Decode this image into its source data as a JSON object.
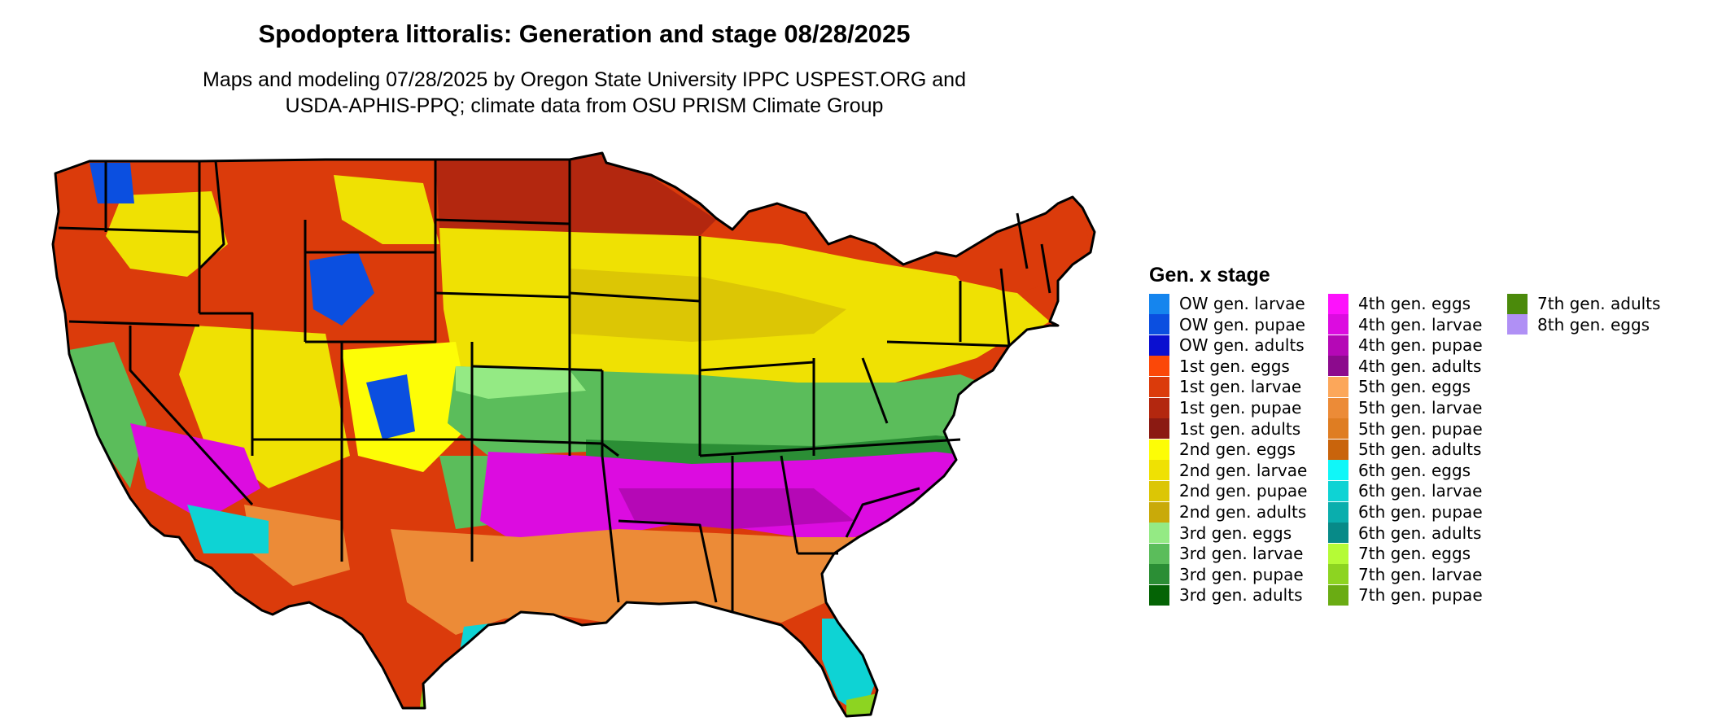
{
  "title": "Spodoptera littoralis: Generation and stage 08/28/2025",
  "subtitle_line1": "Maps and modeling 07/28/2025 by Oregon State University IPPC USPEST.ORG and",
  "subtitle_line2": "USDA-APHIS-PPQ; climate data from OSU PRISM Climate Group",
  "legend": {
    "title": "Gen. x stage",
    "items": [
      {
        "label": "OW gen. larvae",
        "color": "#1585ee"
      },
      {
        "label": "OW gen. pupae",
        "color": "#0b4fe0"
      },
      {
        "label": "OW gen. adults",
        "color": "#0a0fd0"
      },
      {
        "label": "1st gen. eggs",
        "color": "#fb4808"
      },
      {
        "label": "1st gen. larvae",
        "color": "#db3b0b"
      },
      {
        "label": "1st gen. pupae",
        "color": "#b3270f"
      },
      {
        "label": "1st gen. adults",
        "color": "#8b1a12"
      },
      {
        "label": "2nd gen. eggs",
        "color": "#fdfd06"
      },
      {
        "label": "2nd gen. larvae",
        "color": "#efe103"
      },
      {
        "label": "2nd gen. pupae",
        "color": "#dcc605"
      },
      {
        "label": "2nd gen. adults",
        "color": "#c9aa09"
      },
      {
        "label": "3rd gen. eggs",
        "color": "#94ea84"
      },
      {
        "label": "3rd gen. larvae",
        "color": "#5bbd5b"
      },
      {
        "label": "3rd gen. pupae",
        "color": "#2b8e35"
      },
      {
        "label": "3rd gen. adults",
        "color": "#046305"
      },
      {
        "label": "4th gen. eggs",
        "color": "#fd12fc"
      },
      {
        "label": "4th gen. larvae",
        "color": "#dc0ce0"
      },
      {
        "label": "4th gen. pupae",
        "color": "#b508b6"
      },
      {
        "label": "4th gen. adults",
        "color": "#8c0a8d"
      },
      {
        "label": "5th gen. eggs",
        "color": "#fca75a"
      },
      {
        "label": "5th gen. larvae",
        "color": "#ec8b37"
      },
      {
        "label": "5th gen. pupae",
        "color": "#df7d22"
      },
      {
        "label": "5th gen. adults",
        "color": "#c9640c"
      },
      {
        "label": "6th gen. eggs",
        "color": "#10f7f8"
      },
      {
        "label": "6th gen. larvae",
        "color": "#0ed3d4"
      },
      {
        "label": "6th gen. pupae",
        "color": "#0aaead"
      },
      {
        "label": "6th gen. adults",
        "color": "#078a88"
      },
      {
        "label": "7th gen. eggs",
        "color": "#b5fb36"
      },
      {
        "label": "7th gen. larvae",
        "color": "#8dd421"
      },
      {
        "label": "7th gen. pupae",
        "color": "#6aac13"
      },
      {
        "label": "7th gen. adults",
        "color": "#4b8a0b"
      },
      {
        "label": "8th gen. eggs",
        "color": "#b090f5"
      }
    ]
  }
}
